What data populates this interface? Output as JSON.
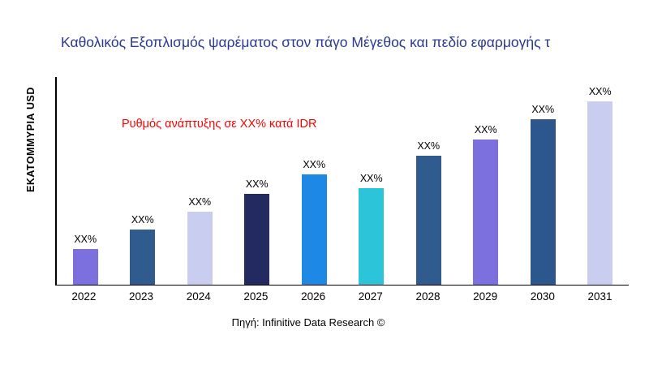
{
  "colors": {
    "title": "#2b3990",
    "annotation": "#ff0000",
    "axis": "#000000",
    "background": "#ffffff"
  },
  "chart_data": {
    "type": "bar",
    "title": "Καθολικός Εξοπλισμός ψαρέματος στον πάγο Μέγεθος και πεδίο εφαρμογής τ",
    "ylabel": "ΕΚΑΤΟΜΜΥΡΙΑ USD",
    "xlabel": "",
    "annotation": "Ρυθμός ανάπτυξης σε XX% κατά IDR",
    "source": "Πηγή: Infinitive Data Research ©",
    "categories": [
      "2022",
      "2023",
      "2024",
      "2025",
      "2026",
      "2027",
      "2028",
      "2029",
      "2030",
      "2031"
    ],
    "values": [
      45,
      69,
      91,
      114,
      138,
      121,
      162,
      182,
      207,
      230
    ],
    "bar_labels": [
      "XX%",
      "XX%",
      "XX%",
      "XX%",
      "XX%",
      "XX%",
      "XX%",
      "XX%",
      "XX%",
      "XX%"
    ],
    "bar_colors": [
      "#7c6fde",
      "#2f5b8e",
      "#c9cef0",
      "#232a60",
      "#1e88e5",
      "#2bc4d9",
      "#2f5b8e",
      "#7c6fde",
      "#2b578c",
      "#c9cef0"
    ],
    "ylim": [
      0,
      260
    ],
    "grid": false,
    "legend": "none"
  }
}
